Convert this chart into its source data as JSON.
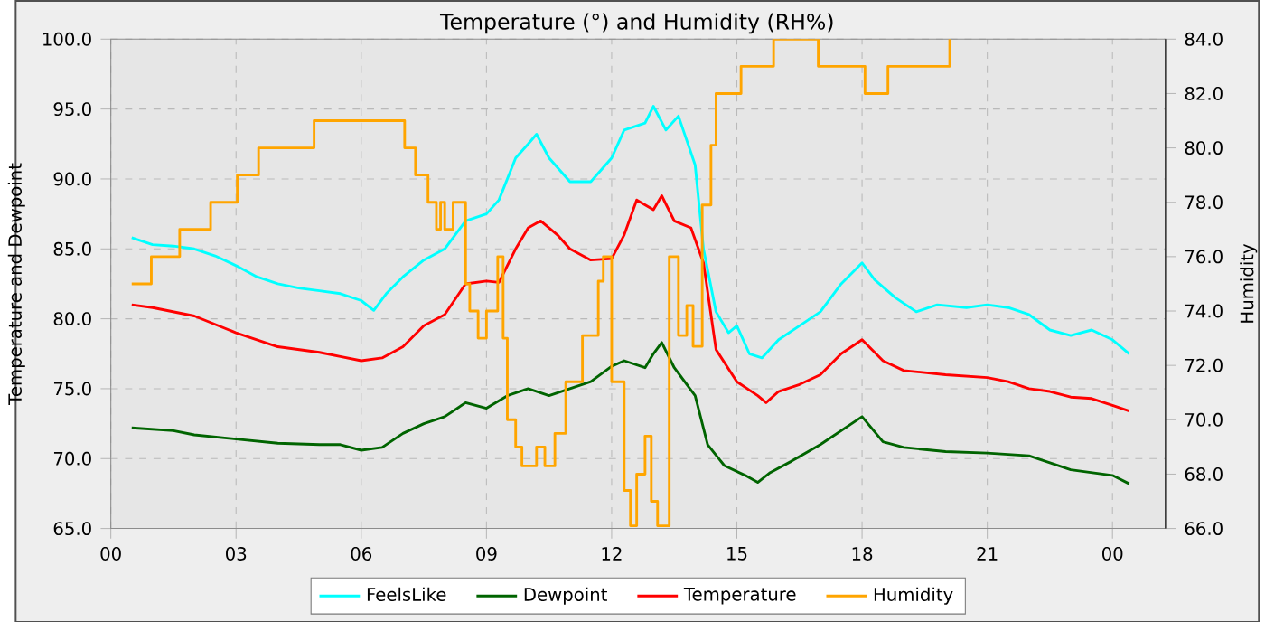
{
  "chart_data": {
    "type": "line",
    "title": "Temperature (°) and Humidity (RH%)",
    "ylabel": "Temperature and Dewpoint",
    "y2label": "Humidity",
    "xlim": [
      0,
      25.27
    ],
    "xticks": [
      {
        "value": 0,
        "label": "00"
      },
      {
        "value": 3,
        "label": "03"
      },
      {
        "value": 6,
        "label": "06"
      },
      {
        "value": 9,
        "label": "09"
      },
      {
        "value": 12,
        "label": "12"
      },
      {
        "value": 15,
        "label": "15"
      },
      {
        "value": 18,
        "label": "18"
      },
      {
        "value": 21,
        "label": "21"
      },
      {
        "value": 24,
        "label": "00"
      }
    ],
    "ylim": [
      65,
      100
    ],
    "yticks": [
      {
        "value": 65,
        "label": "65.0"
      },
      {
        "value": 70,
        "label": "70.0"
      },
      {
        "value": 75,
        "label": "75.0"
      },
      {
        "value": 80,
        "label": "80.0"
      },
      {
        "value": 85,
        "label": "85.0"
      },
      {
        "value": 90,
        "label": "90.0"
      },
      {
        "value": 95,
        "label": "95.0"
      },
      {
        "value": 100,
        "label": "100.0"
      }
    ],
    "y2lim": [
      66,
      84
    ],
    "y2ticks": [
      {
        "value": 66,
        "label": "66.0"
      },
      {
        "value": 68,
        "label": "68.0"
      },
      {
        "value": 70,
        "label": "70.0"
      },
      {
        "value": 72,
        "label": "72.0"
      },
      {
        "value": 74,
        "label": "74.0"
      },
      {
        "value": 76,
        "label": "76.0"
      },
      {
        "value": 78,
        "label": "78.0"
      },
      {
        "value": 80,
        "label": "80.0"
      },
      {
        "value": 82,
        "label": "82.0"
      },
      {
        "value": 84,
        "label": "84.0"
      }
    ],
    "grid": true,
    "legend": "bottom",
    "marker": "none",
    "line_style": "solid",
    "series": [
      {
        "name": "FeelsLike",
        "color": "#00ffff",
        "x": [
          0.5,
          1,
          1.5,
          2,
          2.5,
          3,
          3.5,
          4,
          4.5,
          5,
          5.5,
          6,
          6.3,
          6.6,
          7,
          7.5,
          8,
          8.5,
          9,
          9.3,
          9.7,
          10,
          10.2,
          10.5,
          11,
          11.5,
          12,
          12.3,
          12.8,
          13,
          13.3,
          13.6,
          14,
          14.2,
          14.5,
          14.8,
          15,
          15.3,
          15.6,
          16,
          16.5,
          17,
          17.5,
          18,
          18.3,
          18.8,
          19.3,
          19.8,
          20.5,
          21,
          21.5,
          22,
          22.5,
          23,
          23.5,
          24,
          24.4
        ],
        "values": [
          85.8,
          85.3,
          85.2,
          85,
          84.5,
          83.8,
          83,
          82.5,
          82.2,
          82,
          81.8,
          81.3,
          80.6,
          81.8,
          83,
          84.2,
          85,
          87,
          87.5,
          88.5,
          91.5,
          92.5,
          93.2,
          91.5,
          89.8,
          89.8,
          91.5,
          93.5,
          94,
          95.2,
          93.5,
          94.5,
          91,
          85,
          80.5,
          79,
          79.5,
          77.5,
          77.2,
          78.5,
          79.5,
          80.5,
          82.5,
          84,
          82.8,
          81.5,
          80.5,
          81,
          80.8,
          81,
          80.8,
          80.3,
          79.2,
          78.8,
          79.2,
          78.5,
          77.5
        ]
      },
      {
        "name": "Dewpoint",
        "color": "#006400",
        "x": [
          0.5,
          1.5,
          2,
          3,
          4,
          5,
          5.5,
          6,
          6.5,
          7,
          7.5,
          8,
          8.5,
          9,
          9.5,
          10,
          10.5,
          11,
          11.5,
          12,
          12.3,
          12.8,
          13,
          13.2,
          13.5,
          14,
          14.3,
          14.7,
          15.2,
          15.5,
          15.8,
          16.3,
          17,
          17.5,
          18,
          18.5,
          19,
          20,
          21,
          22,
          22.5,
          23,
          24,
          24.4
        ],
        "values": [
          72.2,
          72,
          71.7,
          71.4,
          71.1,
          71,
          71,
          70.6,
          70.8,
          71.8,
          72.5,
          73,
          74,
          73.6,
          74.5,
          75,
          74.5,
          75,
          75.5,
          76.6,
          77,
          76.5,
          77.5,
          78.3,
          76.5,
          74.5,
          71,
          69.5,
          68.8,
          68.3,
          69,
          69.8,
          71,
          72,
          73,
          71.2,
          70.8,
          70.5,
          70.4,
          70.2,
          69.7,
          69.2,
          68.8,
          68.2
        ]
      },
      {
        "name": "Temperature",
        "color": "#ff0000",
        "x": [
          0.5,
          1,
          2,
          3,
          4,
          5,
          5.5,
          6,
          6.5,
          7,
          7.5,
          8,
          8.5,
          9,
          9.3,
          9.7,
          10,
          10.3,
          10.7,
          11,
          11.5,
          12,
          12.3,
          12.6,
          13,
          13.2,
          13.5,
          13.9,
          14.2,
          14.5,
          15,
          15.5,
          15.7,
          16,
          16.5,
          17,
          17.5,
          18,
          18.5,
          19,
          20,
          21,
          21.5,
          22,
          22.5,
          23,
          23.5,
          24,
          24.4
        ],
        "values": [
          81,
          80.8,
          80.2,
          79,
          78,
          77.6,
          77.3,
          77,
          77.2,
          78,
          79.5,
          80.3,
          82.5,
          82.7,
          82.6,
          85,
          86.5,
          87,
          86,
          85,
          84.2,
          84.3,
          86,
          88.5,
          87.8,
          88.8,
          87,
          86.5,
          84,
          77.8,
          75.5,
          74.5,
          74,
          74.8,
          75.3,
          76,
          77.5,
          78.5,
          77,
          76.3,
          76,
          75.8,
          75.5,
          75,
          74.8,
          74.4,
          74.3,
          73.8,
          73.4
        ]
      },
      {
        "name": "Humidity",
        "color": "#ffa500",
        "type": "step",
        "axis": "y2",
        "x": [
          0.5,
          0.97,
          1.65,
          2.39,
          3.03,
          3.54,
          4.87,
          7.04,
          7.3,
          7.6,
          7.8,
          7.9,
          8.0,
          8.2,
          8.35,
          8.5,
          8.6,
          8.8,
          9.0,
          9.27,
          9.4,
          9.5,
          9.7,
          9.85,
          10.2,
          10.4,
          10.64,
          10.9,
          11.3,
          11.68,
          11.8,
          12.0,
          12.3,
          12.45,
          12.6,
          12.8,
          12.95,
          13.1,
          13.38,
          13.6,
          13.8,
          13.95,
          14.17,
          14.38,
          14.5,
          15.1,
          15.88,
          16.95,
          18.07,
          18.62,
          20.1
        ],
        "values": [
          75,
          76,
          77,
          78,
          79,
          80,
          81,
          80,
          79,
          78,
          77,
          78,
          77,
          78,
          78,
          75,
          74,
          73,
          74,
          76,
          73,
          70,
          69,
          68.3,
          69,
          68.3,
          69.5,
          71.4,
          73.1,
          75.1,
          76,
          71.4,
          67.4,
          66.1,
          68,
          69.4,
          67,
          66.1,
          76,
          73.1,
          74.2,
          72.7,
          77.9,
          80.1,
          82,
          83,
          84,
          83,
          82,
          83,
          84
        ]
      }
    ]
  }
}
